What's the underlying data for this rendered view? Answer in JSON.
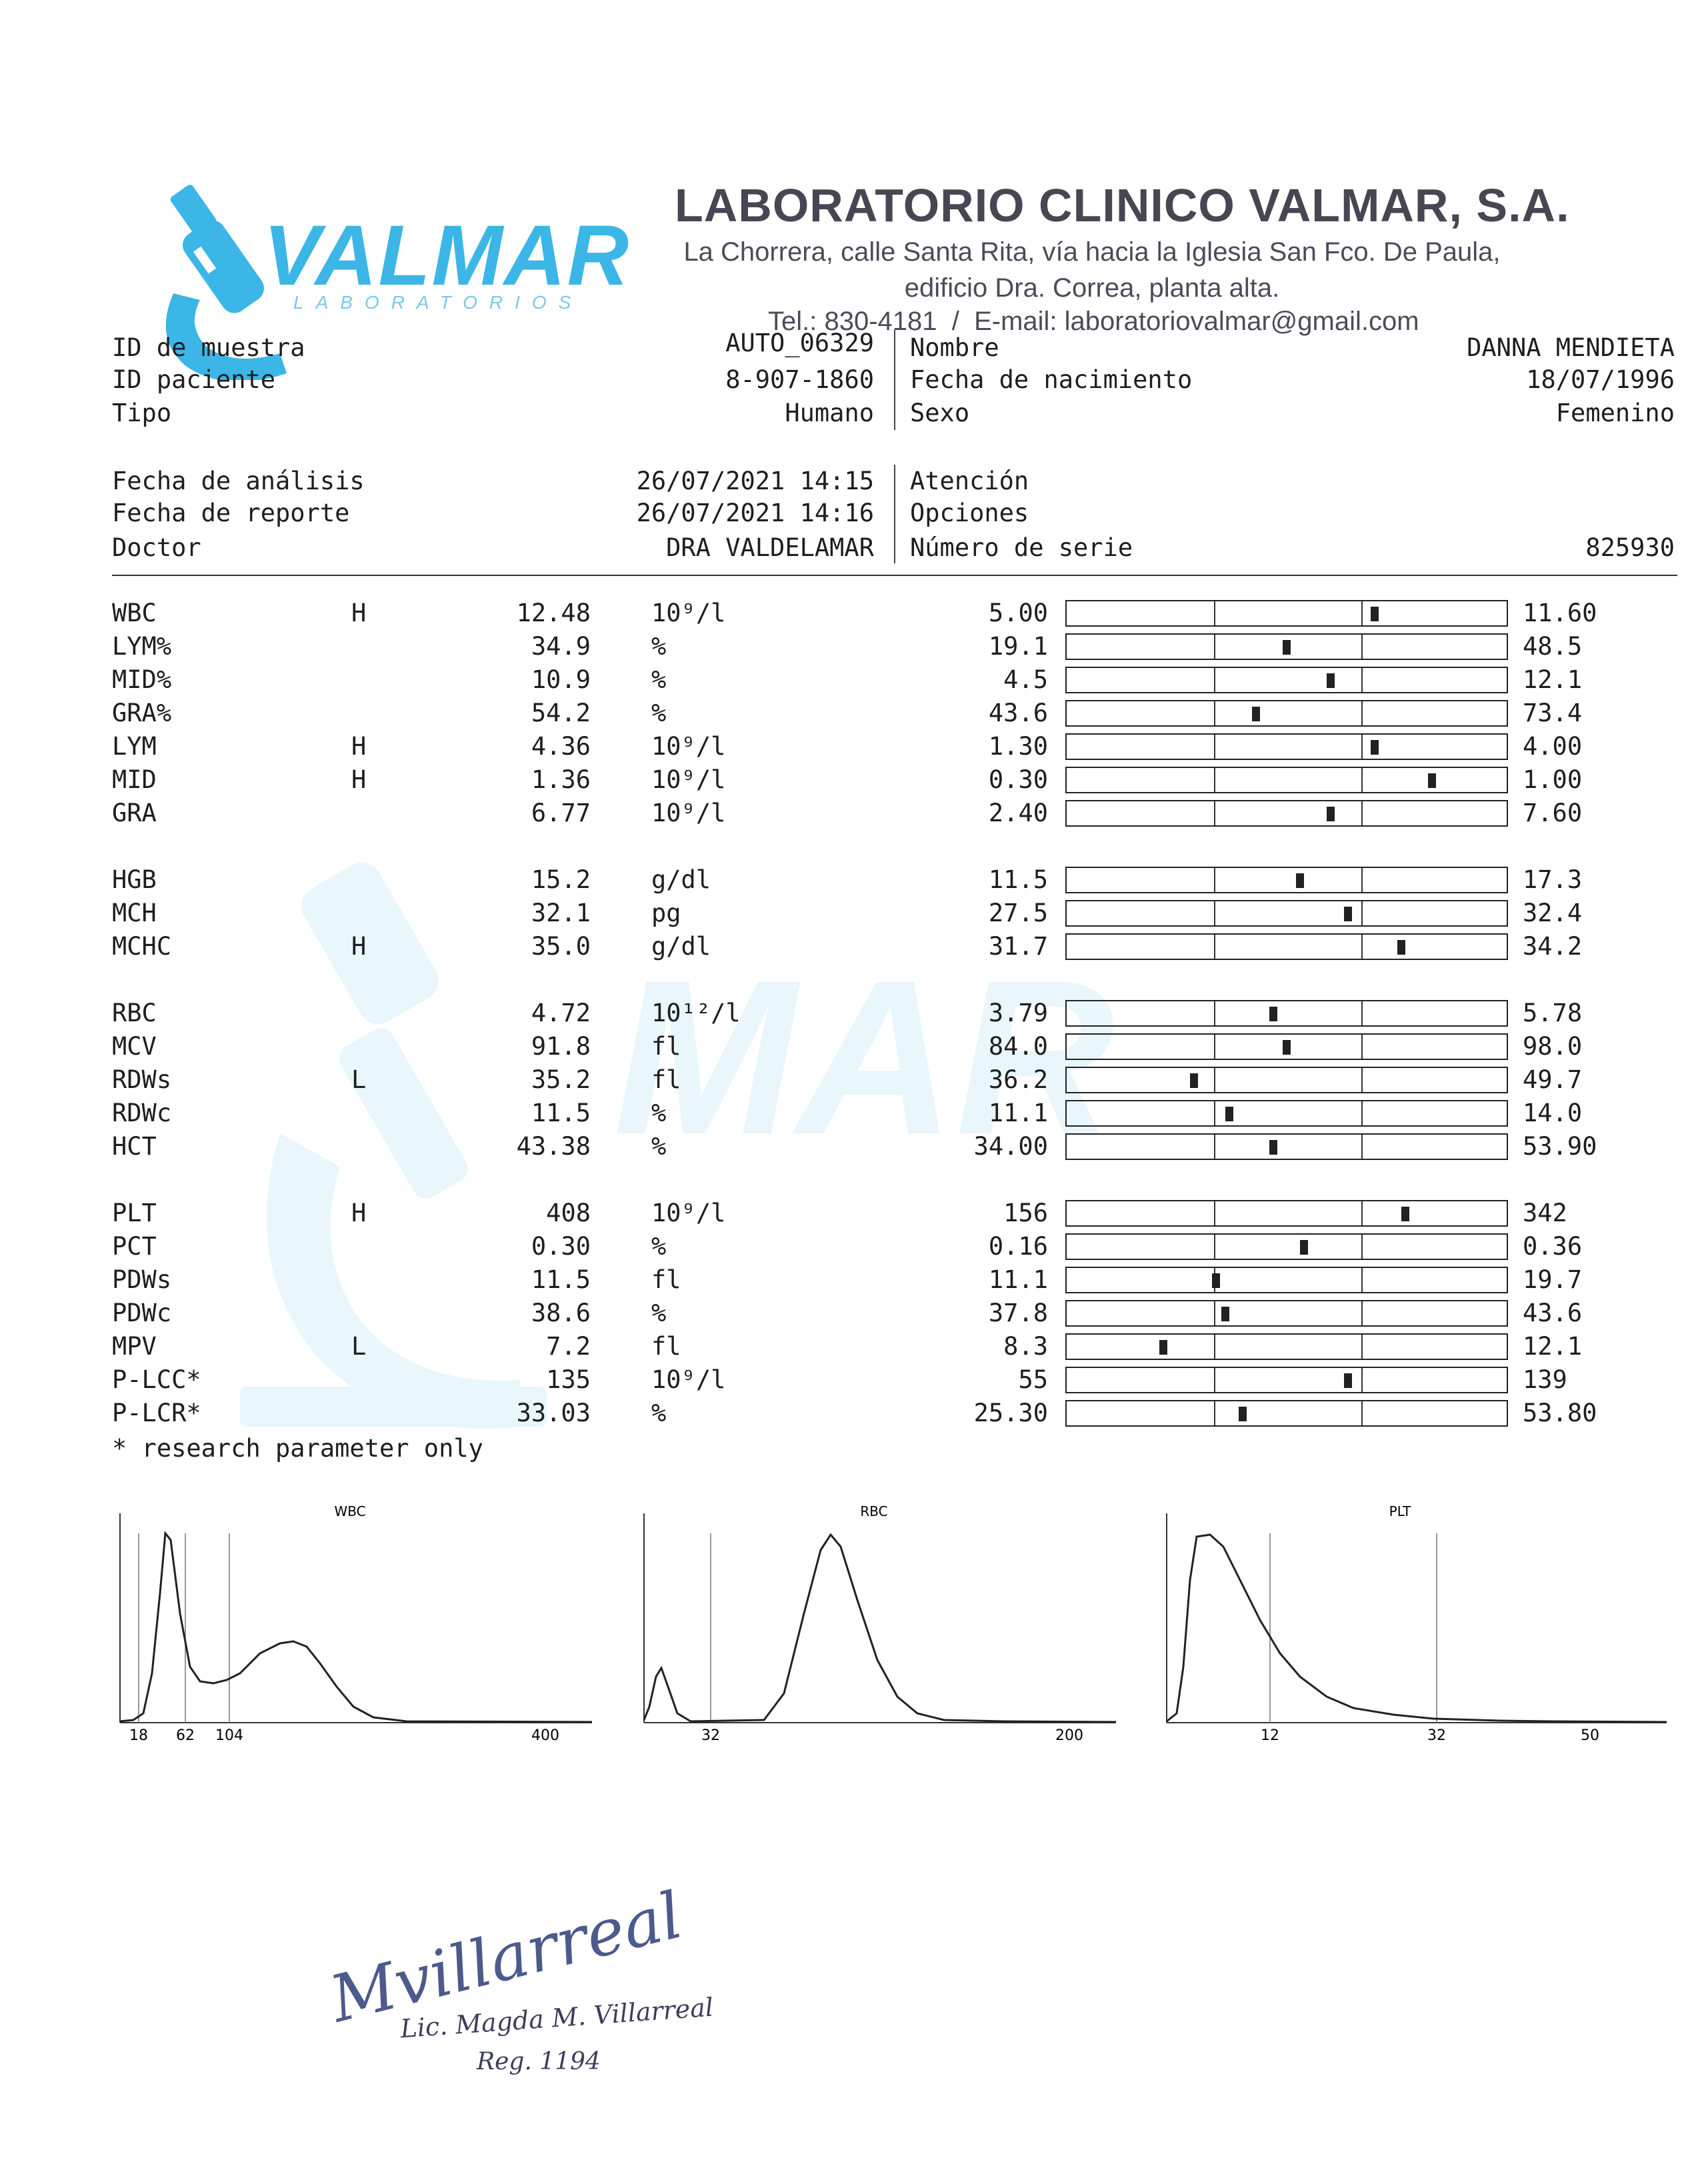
{
  "lab": {
    "logo_name": "VALMAR",
    "logo_sub": "LABORATORIOS",
    "name": "LABORATORIO CLINICO VALMAR, S.A.",
    "address_line1": "La Chorrera, calle Santa Rita, vía hacia la Iglesia San Fco. De Paula,",
    "address_line2": "edificio Dra. Correa, planta alta.",
    "contact": "Tel.: 830-4181  /  E-mail: laboratoriovalmar@gmail.com",
    "brand_color": "#3bb6e6",
    "title_color": "#4a4552"
  },
  "sample": {
    "id_label": "ID de muestra",
    "id_value": "AUTO_06329",
    "patient_label": "ID paciente",
    "patient_value": "8-907-1860",
    "type_label": "Tipo",
    "type_value": "Humano",
    "name_label": "Nombre",
    "name_value": "DANNA MENDIETA",
    "dob_label": "Fecha de nacimiento",
    "dob_value": "18/07/1996",
    "sex_label": "Sexo",
    "sex_value": "Femenino",
    "analysis_label": "Fecha de análisis",
    "analysis_value": "26/07/2021 14:15",
    "report_label": "Fecha de reporte",
    "report_value": "26/07/2021 14:16",
    "doctor_label": "Doctor",
    "doctor_value": "DRA VALDELAMAR",
    "attention_label": "Atención",
    "options_label": "Opciones",
    "serial_label": "Número de serie",
    "serial_value": "825930"
  },
  "results": [
    {
      "name": "WBC",
      "flag": "H",
      "value": "12.48",
      "unit": "10⁹/l",
      "low": "5.00",
      "high": "11.60",
      "pos": 0.7
    },
    {
      "name": "LYM%",
      "flag": "",
      "value": "34.9",
      "unit": "%",
      "low": "19.1",
      "high": "48.5",
      "pos": 0.5
    },
    {
      "name": "MID%",
      "flag": "",
      "value": "10.9",
      "unit": "%",
      "low": "4.5",
      "high": "12.1",
      "pos": 0.6
    },
    {
      "name": "GRA%",
      "flag": "",
      "value": "54.2",
      "unit": "%",
      "low": "43.6",
      "high": "73.4",
      "pos": 0.43
    },
    {
      "name": "LYM",
      "flag": "H",
      "value": "4.36",
      "unit": "10⁹/l",
      "low": "1.30",
      "high": "4.00",
      "pos": 0.7
    },
    {
      "name": "MID",
      "flag": "H",
      "value": "1.36",
      "unit": "10⁹/l",
      "low": "0.30",
      "high": "1.00",
      "pos": 0.83
    },
    {
      "name": "GRA",
      "flag": "",
      "value": "6.77",
      "unit": "10⁹/l",
      "low": "2.40",
      "high": "7.60",
      "pos": 0.6
    },
    {
      "name": "HGB",
      "flag": "",
      "value": "15.2",
      "unit": "g/dl",
      "low": "11.5",
      "high": "17.3",
      "pos": 0.53
    },
    {
      "name": "MCH",
      "flag": "",
      "value": "32.1",
      "unit": "pg",
      "low": "27.5",
      "high": "32.4",
      "pos": 0.64
    },
    {
      "name": "MCHC",
      "flag": "H",
      "value": "35.0",
      "unit": "g/dl",
      "low": "31.7",
      "high": "34.2",
      "pos": 0.76
    },
    {
      "name": "RBC",
      "flag": "",
      "value": "4.72",
      "unit": "10¹²/l",
      "low": "3.79",
      "high": "5.78",
      "pos": 0.47
    },
    {
      "name": "MCV",
      "flag": "",
      "value": "91.8",
      "unit": "fl",
      "low": "84.0",
      "high": "98.0",
      "pos": 0.5
    },
    {
      "name": "RDWs",
      "flag": "L",
      "value": "35.2",
      "unit": "fl",
      "low": "36.2",
      "high": "49.7",
      "pos": 0.29
    },
    {
      "name": "RDWc",
      "flag": "",
      "value": "11.5",
      "unit": "%",
      "low": "11.1",
      "high": "14.0",
      "pos": 0.37
    },
    {
      "name": "HCT",
      "flag": "",
      "value": "43.38",
      "unit": "%",
      "low": "34.00",
      "high": "53.90",
      "pos": 0.47
    },
    {
      "name": "PLT",
      "flag": "H",
      "value": "408",
      "unit": "10⁹/l",
      "low": "156",
      "high": "342",
      "pos": 0.77
    },
    {
      "name": "PCT",
      "flag": "",
      "value": "0.30",
      "unit": "%",
      "low": "0.16",
      "high": "0.36",
      "pos": 0.54
    },
    {
      "name": "PDWs",
      "flag": "",
      "value": "11.5",
      "unit": "fl",
      "low": "11.1",
      "high": "19.7",
      "pos": 0.34
    },
    {
      "name": "PDWc",
      "flag": "",
      "value": "38.6",
      "unit": "%",
      "low": "37.8",
      "high": "43.6",
      "pos": 0.36
    },
    {
      "name": "MPV",
      "flag": "L",
      "value": "7.2",
      "unit": "fl",
      "low": "8.3",
      "high": "12.1",
      "pos": 0.22
    },
    {
      "name": "P-LCC*",
      "flag": "",
      "value": "135",
      "unit": "10⁹/l",
      "low": "55",
      "high": "139",
      "pos": 0.64
    },
    {
      "name": "P-LCR*",
      "flag": "",
      "value": "33.03",
      "unit": "%",
      "low": "25.30",
      "high": "53.80",
      "pos": 0.4
    }
  ],
  "footnote": "* research parameter only",
  "histograms": [
    {
      "title": "WBC",
      "ticks": [
        "18",
        "62",
        "104",
        "400"
      ]
    },
    {
      "title": "RBC",
      "ticks": [
        "32",
        "200"
      ]
    },
    {
      "title": "PLT",
      "ticks": [
        "12",
        "32",
        "50"
      ]
    }
  ],
  "signature": {
    "scribble": "Mvillarreal",
    "name": "Lic. Magda M. Villarreal",
    "reg": "Reg. 1194"
  }
}
